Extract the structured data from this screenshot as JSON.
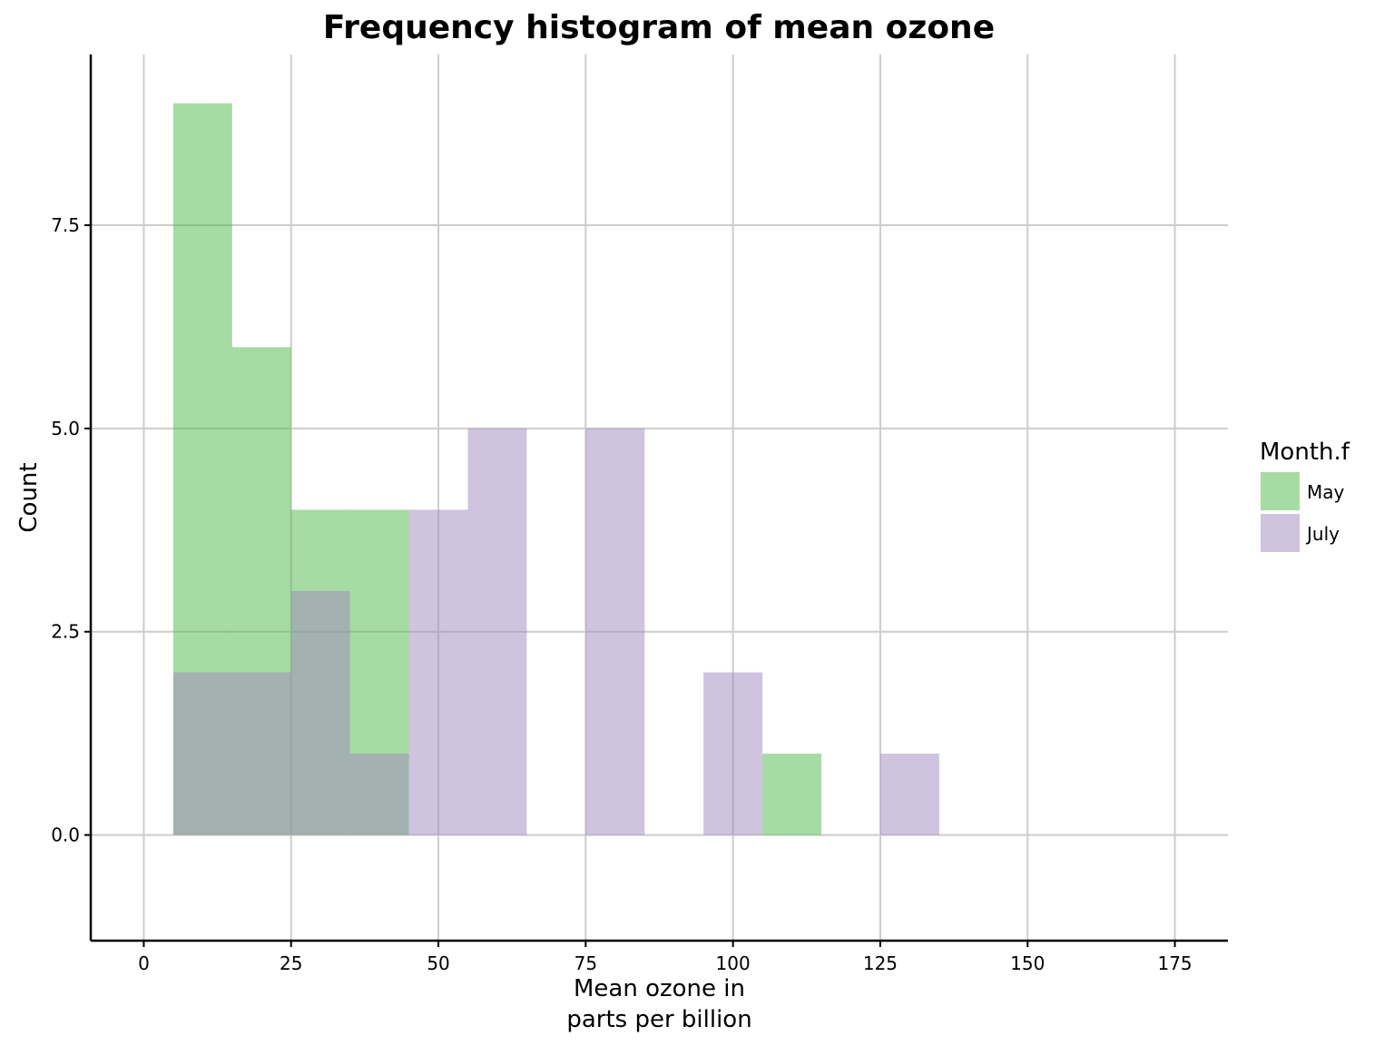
{
  "chart_data": {
    "type": "bar",
    "subtype": "overlaid histogram",
    "title": "Frequency histogram of mean ozone",
    "xlabel": "Mean ozone in\nparts per billion",
    "ylabel": "Count",
    "xlim": [
      -9,
      184
    ],
    "ylim": [
      -1.3,
      9.6
    ],
    "xticks": [
      0,
      25,
      50,
      75,
      100,
      125,
      150,
      175
    ],
    "xtick_labels": [
      "0",
      "25",
      "50",
      "75",
      "100",
      "125",
      "150",
      "175"
    ],
    "yticks": [
      0,
      2.5,
      5,
      7.5
    ],
    "ytick_labels": [
      "0.0",
      "2.5",
      "5.0",
      "7.5"
    ],
    "grid": true,
    "bin_width": 10,
    "bar_opacity": 0.5,
    "legend": {
      "title": "Month.f",
      "position": "right"
    },
    "series": [
      {
        "name": "May",
        "color": "#4db848",
        "bins": [
          {
            "x0": 5,
            "x1": 15,
            "count": 9
          },
          {
            "x0": 15,
            "x1": 25,
            "count": 6
          },
          {
            "x0": 25,
            "x1": 35,
            "count": 4
          },
          {
            "x0": 35,
            "x1": 45,
            "count": 4
          },
          {
            "x0": 105,
            "x1": 115,
            "count": 1
          }
        ]
      },
      {
        "name": "July",
        "color": "#9f88c0",
        "bins": [
          {
            "x0": 5,
            "x1": 15,
            "count": 2
          },
          {
            "x0": 15,
            "x1": 25,
            "count": 2
          },
          {
            "x0": 25,
            "x1": 35,
            "count": 3
          },
          {
            "x0": 35,
            "x1": 45,
            "count": 1
          },
          {
            "x0": 45,
            "x1": 55,
            "count": 4
          },
          {
            "x0": 55,
            "x1": 65,
            "count": 5
          },
          {
            "x0": 75,
            "x1": 85,
            "count": 5
          },
          {
            "x0": 95,
            "x1": 105,
            "count": 2
          },
          {
            "x0": 125,
            "x1": 135,
            "count": 1
          }
        ]
      }
    ]
  }
}
